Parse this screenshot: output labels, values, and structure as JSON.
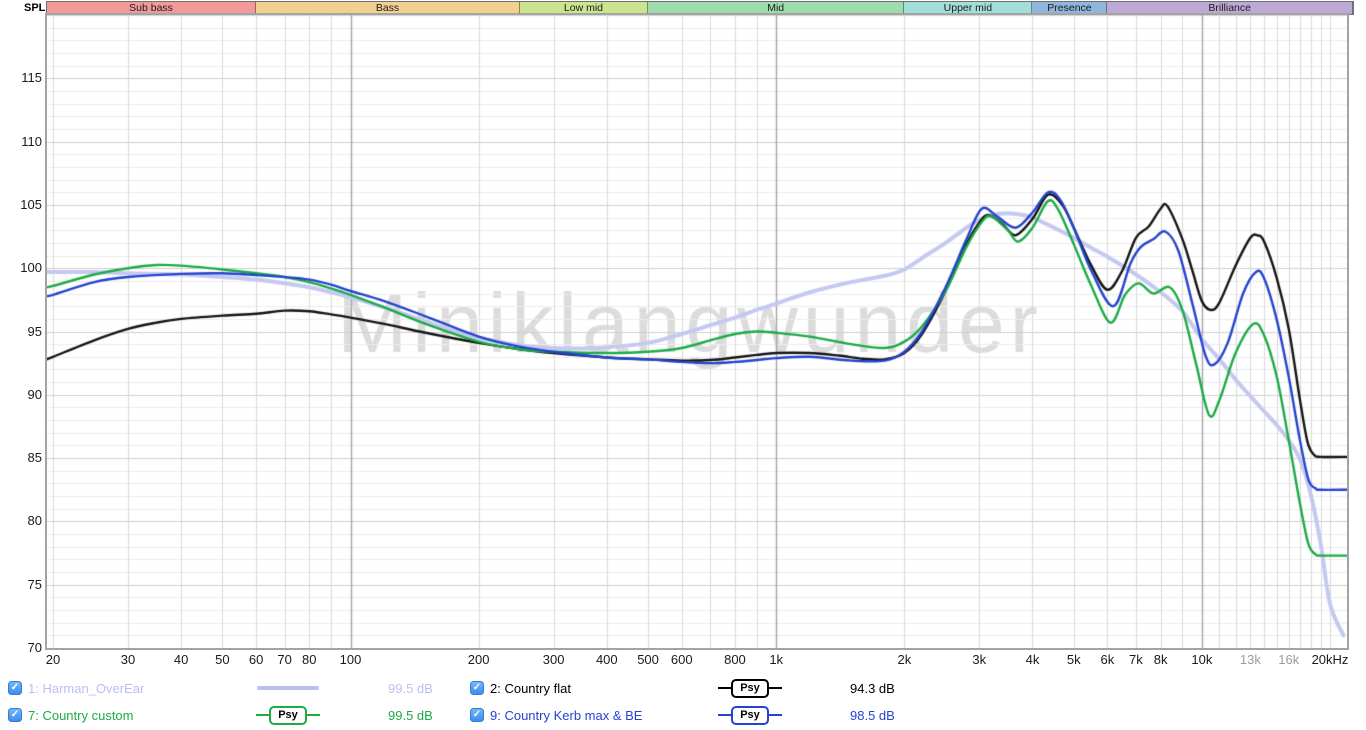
{
  "header": {
    "spl_label": "SPL",
    "bands": [
      {
        "label": "Sub bass",
        "color": "#f29a9a",
        "f1": 20,
        "f2": 60
      },
      {
        "label": "Bass",
        "color": "#f2d08f",
        "f1": 60,
        "f2": 250
      },
      {
        "label": "Low mid",
        "color": "#cce48e",
        "f1": 250,
        "f2": 500
      },
      {
        "label": "Mid",
        "color": "#9edcae",
        "f1": 500,
        "f2": 2000
      },
      {
        "label": "Upper mid",
        "color": "#a2dfd8",
        "f1": 2000,
        "f2": 4000
      },
      {
        "label": "Presence",
        "color": "#8fb6dc",
        "f1": 4000,
        "f2": 6000
      },
      {
        "label": "Brilliance",
        "color": "#bea9d6",
        "f1": 6000,
        "f2": 20000
      }
    ]
  },
  "chart_data": {
    "type": "line",
    "x_scale": "log",
    "x_range": [
      20,
      20000
    ],
    "y_range": [
      70,
      120
    ],
    "y_unit": "dB SPL",
    "grid": true,
    "watermark": "Miniklangwunder",
    "y_ticks": [
      115,
      110,
      105,
      100,
      95,
      90,
      85,
      80,
      75,
      70
    ],
    "x_ticks": [
      {
        "f": 20,
        "label": "20"
      },
      {
        "f": 30,
        "label": "30"
      },
      {
        "f": 40,
        "label": "40"
      },
      {
        "f": 50,
        "label": "50"
      },
      {
        "f": 60,
        "label": "60"
      },
      {
        "f": 70,
        "label": "70"
      },
      {
        "f": 80,
        "label": "80"
      },
      {
        "f": 100,
        "label": "100"
      },
      {
        "f": 200,
        "label": "200"
      },
      {
        "f": 300,
        "label": "300"
      },
      {
        "f": 400,
        "label": "400"
      },
      {
        "f": 500,
        "label": "500"
      },
      {
        "f": 600,
        "label": "600"
      },
      {
        "f": 800,
        "label": "800"
      },
      {
        "f": 1000,
        "label": "1k"
      },
      {
        "f": 2000,
        "label": "2k"
      },
      {
        "f": 3000,
        "label": "3k"
      },
      {
        "f": 4000,
        "label": "4k"
      },
      {
        "f": 5000,
        "label": "5k"
      },
      {
        "f": 6000,
        "label": "6k"
      },
      {
        "f": 7000,
        "label": "7k"
      },
      {
        "f": 8000,
        "label": "8k"
      },
      {
        "f": 10000,
        "label": "10k"
      },
      {
        "f": 13000,
        "label": "13k",
        "muted": true
      },
      {
        "f": 16000,
        "label": "16k",
        "muted": true
      },
      {
        "f": 20000,
        "label": "20kHz"
      }
    ],
    "series": [
      {
        "name": "Harman_OverEar",
        "color": "#c5c9f1",
        "width": 4,
        "points": [
          [
            19.3,
            99.7
          ],
          [
            20,
            99.7
          ],
          [
            25,
            99.7
          ],
          [
            30,
            99.6
          ],
          [
            40,
            99.5
          ],
          [
            50,
            99.3
          ],
          [
            60,
            99.1
          ],
          [
            70,
            98.8
          ],
          [
            80,
            98.5
          ],
          [
            90,
            98.1
          ],
          [
            100,
            97.7
          ],
          [
            120,
            96.9
          ],
          [
            150,
            95.8
          ],
          [
            180,
            94.9
          ],
          [
            200,
            94.5
          ],
          [
            250,
            93.9
          ],
          [
            300,
            93.7
          ],
          [
            350,
            93.65
          ],
          [
            400,
            93.75
          ],
          [
            500,
            94.1
          ],
          [
            600,
            94.8
          ],
          [
            700,
            95.5
          ],
          [
            800,
            96.1
          ],
          [
            900,
            96.7
          ],
          [
            1000,
            97.2
          ],
          [
            1200,
            98.1
          ],
          [
            1500,
            98.9
          ],
          [
            1800,
            99.4
          ],
          [
            2000,
            99.9
          ],
          [
            2200,
            100.8
          ],
          [
            2500,
            102.0
          ],
          [
            2800,
            103.2
          ],
          [
            3000,
            103.8
          ],
          [
            3200,
            104.2
          ],
          [
            3500,
            104.35
          ],
          [
            3800,
            104.2
          ],
          [
            4000,
            104.0
          ],
          [
            4500,
            103.2
          ],
          [
            5000,
            102.4
          ],
          [
            5500,
            101.6
          ],
          [
            6000,
            100.9
          ],
          [
            7000,
            99.5
          ],
          [
            8000,
            98.1
          ],
          [
            9000,
            96.6
          ],
          [
            10000,
            94.4
          ],
          [
            11000,
            92.8
          ],
          [
            12000,
            91.2
          ],
          [
            13000,
            89.9
          ],
          [
            14000,
            88.7
          ],
          [
            15000,
            87.6
          ],
          [
            16000,
            86.4
          ],
          [
            17000,
            84.9
          ],
          [
            18000,
            82.2
          ],
          [
            19000,
            78.3
          ],
          [
            20000,
            73.5
          ],
          [
            21500,
            71.0
          ]
        ]
      },
      {
        "name": "Country flat",
        "color": "#141414",
        "width": 2.4,
        "points": [
          [
            19.3,
            92.8
          ],
          [
            20,
            93.0
          ],
          [
            25,
            94.3
          ],
          [
            30,
            95.2
          ],
          [
            35,
            95.7
          ],
          [
            40,
            96.0
          ],
          [
            50,
            96.25
          ],
          [
            60,
            96.4
          ],
          [
            70,
            96.65
          ],
          [
            80,
            96.6
          ],
          [
            90,
            96.35
          ],
          [
            100,
            96.1
          ],
          [
            120,
            95.6
          ],
          [
            150,
            94.9
          ],
          [
            200,
            94.1
          ],
          [
            250,
            93.6
          ],
          [
            300,
            93.3
          ],
          [
            400,
            92.95
          ],
          [
            500,
            92.8
          ],
          [
            600,
            92.7
          ],
          [
            700,
            92.75
          ],
          [
            800,
            92.95
          ],
          [
            900,
            93.15
          ],
          [
            1000,
            93.3
          ],
          [
            1200,
            93.3
          ],
          [
            1400,
            93.1
          ],
          [
            1600,
            92.85
          ],
          [
            1800,
            92.8
          ],
          [
            2000,
            93.3
          ],
          [
            2200,
            94.8
          ],
          [
            2500,
            98.2
          ],
          [
            2800,
            101.9
          ],
          [
            3000,
            103.6
          ],
          [
            3150,
            104.2
          ],
          [
            3400,
            103.5
          ],
          [
            3650,
            102.6
          ],
          [
            4000,
            103.9
          ],
          [
            4350,
            105.8
          ],
          [
            4700,
            105.0
          ],
          [
            5000,
            103.2
          ],
          [
            5500,
            100.2
          ],
          [
            6000,
            98.3
          ],
          [
            6500,
            99.8
          ],
          [
            7000,
            102.4
          ],
          [
            7500,
            103.3
          ],
          [
            8000,
            104.7
          ],
          [
            8300,
            104.9
          ],
          [
            9000,
            102.3
          ],
          [
            9500,
            99.8
          ],
          [
            10000,
            97.4
          ],
          [
            10500,
            96.7
          ],
          [
            11000,
            97.3
          ],
          [
            12000,
            100.2
          ],
          [
            13000,
            102.4
          ],
          [
            13500,
            102.6
          ],
          [
            14000,
            102.1
          ],
          [
            15000,
            99.2
          ],
          [
            16000,
            95.2
          ],
          [
            17000,
            89.6
          ],
          [
            17700,
            86.3
          ],
          [
            18300,
            85.3
          ],
          [
            19000,
            85.1
          ],
          [
            21900,
            85.1
          ]
        ]
      },
      {
        "name": "Country custom",
        "color": "#1cab45",
        "width": 2.4,
        "points": [
          [
            19.3,
            98.5
          ],
          [
            20,
            98.6
          ],
          [
            25,
            99.5
          ],
          [
            30,
            100.0
          ],
          [
            35,
            100.25
          ],
          [
            40,
            100.2
          ],
          [
            50,
            99.9
          ],
          [
            60,
            99.6
          ],
          [
            70,
            99.3
          ],
          [
            80,
            98.9
          ],
          [
            90,
            98.4
          ],
          [
            100,
            97.9
          ],
          [
            120,
            96.9
          ],
          [
            150,
            95.6
          ],
          [
            200,
            94.2
          ],
          [
            250,
            93.6
          ],
          [
            300,
            93.4
          ],
          [
            400,
            93.3
          ],
          [
            500,
            93.4
          ],
          [
            600,
            93.7
          ],
          [
            700,
            94.3
          ],
          [
            800,
            94.8
          ],
          [
            900,
            95.0
          ],
          [
            1000,
            94.9
          ],
          [
            1200,
            94.6
          ],
          [
            1500,
            94.0
          ],
          [
            1800,
            93.7
          ],
          [
            2000,
            94.2
          ],
          [
            2200,
            95.4
          ],
          [
            2500,
            98.2
          ],
          [
            2800,
            101.7
          ],
          [
            3050,
            103.7
          ],
          [
            3200,
            104.1
          ],
          [
            3500,
            103.0
          ],
          [
            3700,
            102.1
          ],
          [
            4000,
            103.2
          ],
          [
            4350,
            105.3
          ],
          [
            4600,
            104.6
          ],
          [
            5000,
            101.9
          ],
          [
            5500,
            98.6
          ],
          [
            6100,
            95.7
          ],
          [
            6600,
            97.9
          ],
          [
            7100,
            98.8
          ],
          [
            7700,
            98.0
          ],
          [
            8400,
            98.5
          ],
          [
            9000,
            96.7
          ],
          [
            9700,
            92.4
          ],
          [
            10400,
            88.4
          ],
          [
            11000,
            89.6
          ],
          [
            12000,
            93.3
          ],
          [
            13200,
            95.6
          ],
          [
            14000,
            94.7
          ],
          [
            15000,
            91.4
          ],
          [
            16000,
            86.4
          ],
          [
            17000,
            81.4
          ],
          [
            17800,
            78.2
          ],
          [
            18500,
            77.4
          ],
          [
            19000,
            77.3
          ],
          [
            21900,
            77.3
          ]
        ]
      },
      {
        "name": "Country Kerb max & BE",
        "color": "#2444cf",
        "width": 2.4,
        "points": [
          [
            19.3,
            97.8
          ],
          [
            20,
            97.9
          ],
          [
            25,
            98.9
          ],
          [
            30,
            99.3
          ],
          [
            40,
            99.55
          ],
          [
            50,
            99.6
          ],
          [
            60,
            99.45
          ],
          [
            70,
            99.3
          ],
          [
            80,
            99.1
          ],
          [
            90,
            98.7
          ],
          [
            100,
            98.2
          ],
          [
            120,
            97.4
          ],
          [
            150,
            96.2
          ],
          [
            200,
            94.6
          ],
          [
            250,
            93.8
          ],
          [
            300,
            93.4
          ],
          [
            400,
            92.95
          ],
          [
            500,
            92.8
          ],
          [
            600,
            92.6
          ],
          [
            700,
            92.5
          ],
          [
            800,
            92.6
          ],
          [
            900,
            92.75
          ],
          [
            1000,
            92.9
          ],
          [
            1200,
            93.0
          ],
          [
            1500,
            92.7
          ],
          [
            1800,
            92.7
          ],
          [
            2000,
            93.4
          ],
          [
            2200,
            95.0
          ],
          [
            2500,
            98.5
          ],
          [
            2800,
            102.3
          ],
          [
            3040,
            104.7
          ],
          [
            3300,
            104.1
          ],
          [
            3650,
            103.2
          ],
          [
            4000,
            104.4
          ],
          [
            4350,
            106.0
          ],
          [
            4650,
            105.4
          ],
          [
            5000,
            103.2
          ],
          [
            5500,
            99.8
          ],
          [
            6200,
            97.0
          ],
          [
            6800,
            100.4
          ],
          [
            7200,
            101.7
          ],
          [
            7700,
            102.3
          ],
          [
            8200,
            102.9
          ],
          [
            8800,
            101.4
          ],
          [
            9500,
            97.2
          ],
          [
            10200,
            93.1
          ],
          [
            10700,
            92.4
          ],
          [
            11500,
            94.1
          ],
          [
            12500,
            98.0
          ],
          [
            13400,
            99.7
          ],
          [
            14000,
            99.2
          ],
          [
            15000,
            95.9
          ],
          [
            16000,
            91.4
          ],
          [
            17000,
            86.4
          ],
          [
            17800,
            83.3
          ],
          [
            18500,
            82.6
          ],
          [
            19000,
            82.5
          ],
          [
            21900,
            82.5
          ]
        ]
      }
    ]
  },
  "legend": {
    "psy_label": "Psy",
    "check_glyph": "✓",
    "checkbox_color": "#3c8def",
    "rows": [
      {
        "label": "1: Harman_OverEar",
        "value": "99.5 dB",
        "color": "#b9c0f0",
        "swatch": "line",
        "checked": true
      },
      {
        "label": "2: Country flat",
        "value": "94.3 dB",
        "color": "#000000",
        "swatch": "psy",
        "checked": true
      },
      {
        "label": "7: Country custom",
        "value": "99.5 dB",
        "color": "#1cab45",
        "swatch": "psy",
        "checked": true
      },
      {
        "label": "9: Country Kerb max & BE",
        "value": "98.5 dB",
        "color": "#2444cf",
        "swatch": "psy",
        "checked": true
      }
    ]
  }
}
